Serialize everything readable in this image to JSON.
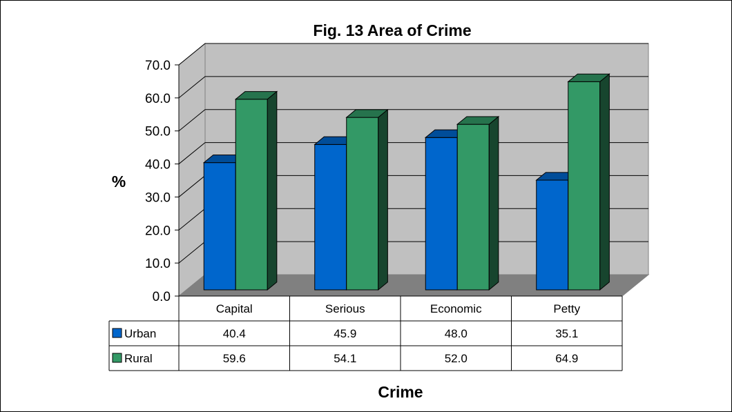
{
  "chart_data": {
    "type": "bar",
    "title": "Fig. 13 Area of Crime",
    "xlabel": "Crime",
    "ylabel": "%",
    "ylim": [
      0,
      70
    ],
    "ytick_step": 10,
    "ytick_labels": [
      "0.0",
      "10.0",
      "20.0",
      "30.0",
      "40.0",
      "50.0",
      "60.0",
      "70.0"
    ],
    "categories": [
      "Capital",
      "Serious",
      "Economic",
      "Petty"
    ],
    "series": [
      {
        "name": "Urban",
        "values": [
          40.4,
          45.9,
          48.0,
          35.1
        ],
        "labels": [
          "40.4",
          "45.9",
          "48.0",
          "35.1"
        ],
        "color": "#0066cc"
      },
      {
        "name": "Rural",
        "values": [
          59.6,
          54.1,
          52.0,
          64.9
        ],
        "labels": [
          "59.6",
          "54.1",
          "52.0",
          "64.9"
        ],
        "color": "#339966"
      }
    ],
    "grid": true,
    "style": "3d-clustered-column",
    "legend": "data-table",
    "colors": {
      "wall": "#c0c0c0",
      "floor": "#808080"
    }
  }
}
